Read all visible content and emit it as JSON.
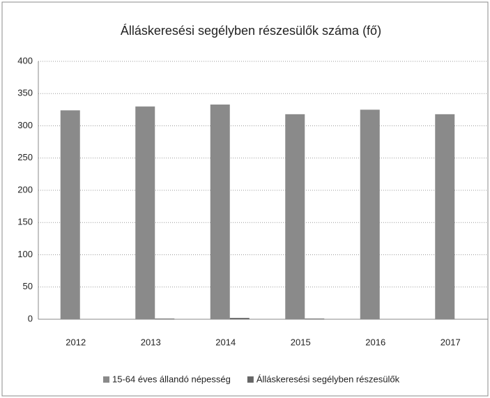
{
  "chart_data": {
    "type": "bar",
    "title": "Álláskeresési segélyben részesülők száma (fő)",
    "categories": [
      "2012",
      "2013",
      "2014",
      "2015",
      "2016",
      "2017"
    ],
    "series": [
      {
        "name": "15-64 éves állandó népesség",
        "color": "#8a8a8a",
        "values": [
          324,
          330,
          333,
          318,
          325,
          318
        ]
      },
      {
        "name": "Álláskeresési segélyben részesülők",
        "color": "#666666",
        "values": [
          0,
          1,
          2,
          1,
          0,
          0
        ]
      }
    ],
    "ylim": [
      0,
      400
    ],
    "yticks": [
      0,
      50,
      100,
      150,
      200,
      250,
      300,
      350,
      400
    ],
    "grid": true,
    "legend": "bottom"
  }
}
